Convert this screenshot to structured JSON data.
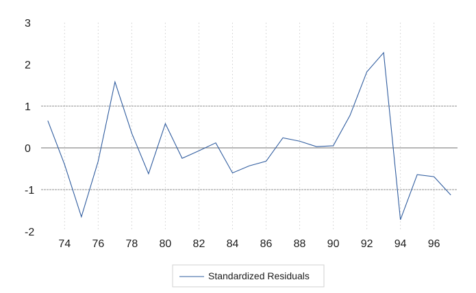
{
  "chart_data": {
    "type": "line",
    "title": "",
    "xlabel": "",
    "ylabel": "",
    "xlim": [
      1972.6,
      1997.4
    ],
    "ylim": [
      -2,
      3
    ],
    "x_ticks": [
      74,
      76,
      78,
      80,
      82,
      84,
      86,
      88,
      90,
      92,
      94,
      96
    ],
    "y_ticks": [
      3,
      2,
      1,
      0,
      -1,
      -2
    ],
    "reference_lines": [
      1,
      0,
      -1
    ],
    "grid": "vertical dotted",
    "legend_position": "bottom-center",
    "series": [
      {
        "name": "Standardized Residuals",
        "color": "#2E5B9E",
        "x": [
          1973,
          1974,
          1975,
          1976,
          1977,
          1978,
          1979,
          1980,
          1981,
          1982,
          1983,
          1984,
          1985,
          1986,
          1987,
          1988,
          1989,
          1990,
          1991,
          1992,
          1993,
          1994,
          1995,
          1996,
          1997
        ],
        "values": [
          0.65,
          -0.4,
          -1.65,
          -0.32,
          1.58,
          0.35,
          -0.62,
          0.58,
          -0.25,
          -0.07,
          0.12,
          -0.6,
          -0.43,
          -0.32,
          0.24,
          0.16,
          0.03,
          0.05,
          0.78,
          1.82,
          2.28,
          -1.72,
          -0.64,
          -0.69,
          -1.13
        ]
      }
    ]
  }
}
